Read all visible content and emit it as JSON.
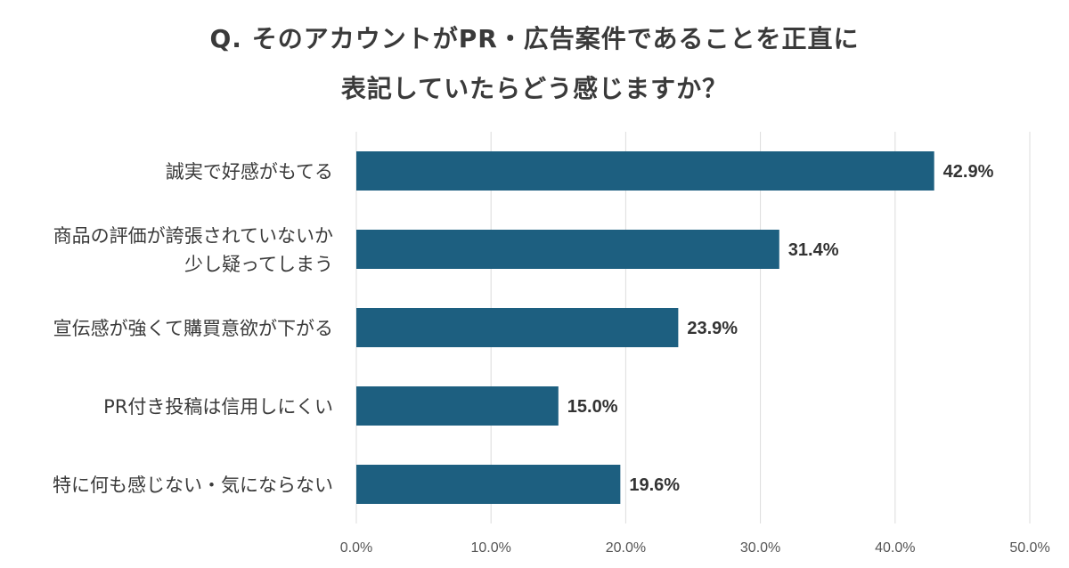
{
  "chart_data": {
    "type": "bar",
    "orientation": "horizontal",
    "title": [
      "Q. そのアカウントがPR・広告案件であることを正直に",
      "表記していたらどう感じますか？"
    ],
    "categories": [
      [
        "誠実で好感がもてる"
      ],
      [
        "商品の評価が誇張されていないか",
        "少し疑ってしまう"
      ],
      [
        "宣伝感が強くて購買意欲が下がる"
      ],
      [
        "PR付き投稿は信用しにくい"
      ],
      [
        "特に何も感じない・気にならない"
      ]
    ],
    "values": [
      42.9,
      31.4,
      23.9,
      15.0,
      19.6
    ],
    "value_labels": [
      "42.9%",
      "31.4%",
      "23.9%",
      "15.0%",
      "19.6%"
    ],
    "xlim": [
      0,
      50
    ],
    "x_ticks": [
      0,
      10,
      20,
      30,
      40,
      50
    ],
    "x_tick_labels": [
      "0.0%",
      "10.0%",
      "20.0%",
      "30.0%",
      "40.0%",
      "50.0%"
    ],
    "grid": true,
    "bar_color": "#1d5f80",
    "grid_color": "#dcdcdc"
  }
}
